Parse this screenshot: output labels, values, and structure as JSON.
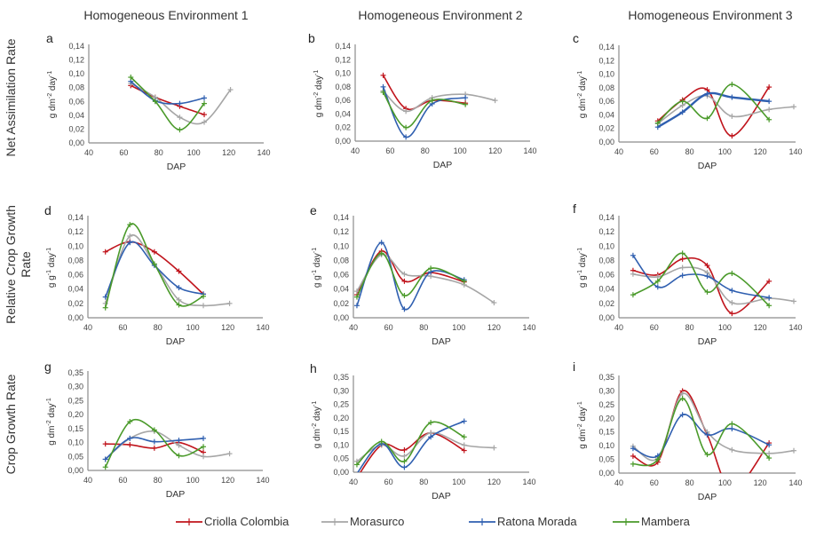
{
  "column_titles": [
    "Homogeneous Environment 1",
    "Homogeneous Environment 2",
    "Homogeneous Environment 3"
  ],
  "row_titles": [
    [
      "Net Assimilation Rate"
    ],
    [
      "Relative Crop Growth",
      "Rate"
    ],
    [
      "Crop Growth Rate"
    ]
  ],
  "legend": [
    {
      "name": "Criolla Colombia",
      "color": "#c0141c"
    },
    {
      "name": "Morasurco",
      "color": "#a6a6a6"
    },
    {
      "name": "Ratona Morada",
      "color": "#2f5fb0"
    },
    {
      "name": "Mambera",
      "color": "#4a9a2a"
    }
  ],
  "chart_data": [
    {
      "panel": "a",
      "type": "line",
      "title": "",
      "xlabel": "DAP",
      "ylabel": "g dm-2 day-1",
      "xlim": [
        40,
        140
      ],
      "xticks": [
        "40",
        "60",
        "80",
        "100",
        "120",
        "140"
      ],
      "ylim": [
        0,
        0.14
      ],
      "yticks": [
        "0,00",
        "0,02",
        "0,04",
        "0,06",
        "0,08",
        "0,10",
        "0,12",
        "0,14"
      ],
      "series": [
        {
          "name": "Criolla Colombia",
          "x": [
            64,
            78,
            92,
            106
          ],
          "y": [
            0.083,
            0.066,
            0.053,
            0.041
          ]
        },
        {
          "name": "Morasurco",
          "x": [
            64,
            78,
            92,
            106,
            121
          ],
          "y": [
            0.086,
            0.066,
            0.037,
            0.03,
            0.077
          ]
        },
        {
          "name": "Ratona Morada",
          "x": [
            64,
            78,
            92,
            106
          ],
          "y": [
            0.089,
            0.061,
            0.057,
            0.065
          ]
        },
        {
          "name": "Mambera",
          "x": [
            64,
            78,
            92,
            106
          ],
          "y": [
            0.095,
            0.06,
            0.019,
            0.057
          ]
        }
      ]
    },
    {
      "panel": "b",
      "type": "line",
      "title": "",
      "xlabel": "DAP",
      "ylabel": "g dm-2 day-1",
      "xlim": [
        40,
        140
      ],
      "xticks": [
        "40",
        "60",
        "80",
        "100",
        "120",
        "140"
      ],
      "ylim": [
        0,
        0.14
      ],
      "yticks": [
        "0,00",
        "0,02",
        "0,04",
        "0,06",
        "0,08",
        "0,10",
        "0,12",
        "0,14"
      ],
      "series": [
        {
          "name": "Criolla Colombia",
          "x": [
            56,
            69,
            84,
            103
          ],
          "y": [
            0.097,
            0.048,
            0.06,
            0.056
          ]
        },
        {
          "name": "Morasurco",
          "x": [
            56,
            69,
            84,
            103,
            120
          ],
          "y": [
            0.074,
            0.044,
            0.064,
            0.069,
            0.06
          ]
        },
        {
          "name": "Ratona Morada",
          "x": [
            56,
            69,
            84,
            103
          ],
          "y": [
            0.08,
            0.006,
            0.055,
            0.064
          ]
        },
        {
          "name": "Mambera",
          "x": [
            56,
            69,
            84,
            103
          ],
          "y": [
            0.072,
            0.02,
            0.06,
            0.054
          ]
        }
      ]
    },
    {
      "panel": "c",
      "type": "line",
      "title": "",
      "xlabel": "DAP",
      "ylabel": "g dm-2 day-1",
      "xlim": [
        40,
        140
      ],
      "xticks": [
        "40",
        "60",
        "80",
        "100",
        "120",
        "140"
      ],
      "ylim": [
        0,
        0.14
      ],
      "yticks": [
        "0,00",
        "0,02",
        "0,04",
        "0,06",
        "0,08",
        "0,10",
        "0,12",
        "0,14"
      ],
      "series": [
        {
          "name": "Criolla Colombia",
          "x": [
            62,
            76,
            90,
            104,
            125
          ],
          "y": [
            0.031,
            0.062,
            0.077,
            0.009,
            0.081
          ]
        },
        {
          "name": "Morasurco",
          "x": [
            62,
            76,
            90,
            104,
            125,
            139
          ],
          "y": [
            0.027,
            0.054,
            0.068,
            0.038,
            0.048,
            0.052
          ]
        },
        {
          "name": "Ratona Morada",
          "x": [
            62,
            76,
            90,
            104,
            125
          ],
          "y": [
            0.022,
            0.044,
            0.071,
            0.066,
            0.06
          ]
        },
        {
          "name": "Mambera",
          "x": [
            62,
            76,
            90,
            104,
            125
          ],
          "y": [
            0.028,
            0.06,
            0.035,
            0.085,
            0.033
          ]
        }
      ]
    },
    {
      "panel": "d",
      "type": "line",
      "title": "",
      "xlabel": "DAP",
      "ylabel": "g g-1 day-1",
      "xlim": [
        40,
        140
      ],
      "xticks": [
        "40",
        "60",
        "80",
        "100",
        "120",
        "140"
      ],
      "ylim": [
        0,
        0.14
      ],
      "yticks": [
        "0,00",
        "0,02",
        "0,04",
        "0,06",
        "0,08",
        "0,10",
        "0,12",
        "0,14"
      ],
      "series": [
        {
          "name": "Criolla Colombia",
          "x": [
            50,
            64,
            78,
            92,
            106
          ],
          "y": [
            0.092,
            0.106,
            0.092,
            0.065,
            0.033
          ]
        },
        {
          "name": "Morasurco",
          "x": [
            50,
            64,
            78,
            92,
            106,
            121
          ],
          "y": [
            0.02,
            0.114,
            0.075,
            0.025,
            0.017,
            0.02
          ]
        },
        {
          "name": "Ratona Morada",
          "x": [
            50,
            64,
            78,
            92,
            106
          ],
          "y": [
            0.029,
            0.105,
            0.073,
            0.042,
            0.033
          ]
        },
        {
          "name": "Mambera",
          "x": [
            50,
            64,
            78,
            92,
            106
          ],
          "y": [
            0.014,
            0.13,
            0.075,
            0.018,
            0.03
          ]
        }
      ]
    },
    {
      "panel": "e",
      "type": "line",
      "title": "",
      "xlabel": "DAP",
      "ylabel": "g g-1 day-1",
      "xlim": [
        40,
        140
      ],
      "xticks": [
        "40",
        "60",
        "80",
        "100",
        "120",
        "140"
      ],
      "ylim": [
        0,
        0.14
      ],
      "yticks": [
        "0,00",
        "0,02",
        "0,04",
        "0,06",
        "0,08",
        "0,10",
        "0,12",
        "0,14"
      ],
      "series": [
        {
          "name": "Criolla Colombia",
          "x": [
            42,
            56,
            69,
            84,
            103
          ],
          "y": [
            0.032,
            0.093,
            0.051,
            0.063,
            0.05
          ]
        },
        {
          "name": "Morasurco",
          "x": [
            42,
            56,
            69,
            84,
            103,
            120
          ],
          "y": [
            0.037,
            0.088,
            0.061,
            0.058,
            0.046,
            0.021
          ]
        },
        {
          "name": "Ratona Morada",
          "x": [
            42,
            56,
            69,
            84,
            103
          ],
          "y": [
            0.017,
            0.105,
            0.012,
            0.064,
            0.053
          ]
        },
        {
          "name": "Mambera",
          "x": [
            42,
            56,
            69,
            84,
            103
          ],
          "y": [
            0.029,
            0.09,
            0.031,
            0.069,
            0.051
          ]
        }
      ]
    },
    {
      "panel": "f",
      "type": "line",
      "title": "",
      "xlabel": "DAP",
      "ylabel": "g g-1 day-1",
      "xlim": [
        40,
        140
      ],
      "xticks": [
        "40",
        "60",
        "80",
        "100",
        "120",
        "140"
      ],
      "ylim": [
        0,
        0.14
      ],
      "yticks": [
        "0,00",
        "0,02",
        "0,04",
        "0,06",
        "0,08",
        "0,10",
        "0,12",
        "0,14"
      ],
      "series": [
        {
          "name": "Criolla Colombia",
          "x": [
            48,
            62,
            76,
            90,
            104,
            125
          ],
          "y": [
            0.066,
            0.06,
            0.082,
            0.073,
            0.006,
            0.051
          ]
        },
        {
          "name": "Morasurco",
          "x": [
            48,
            62,
            76,
            90,
            104,
            125,
            139
          ],
          "y": [
            0.061,
            0.057,
            0.07,
            0.063,
            0.021,
            0.027,
            0.023
          ]
        },
        {
          "name": "Ratona Morada",
          "x": [
            48,
            62,
            76,
            90,
            104,
            125
          ],
          "y": [
            0.087,
            0.043,
            0.059,
            0.058,
            0.038,
            0.028
          ]
        },
        {
          "name": "Mambera",
          "x": [
            48,
            62,
            76,
            90,
            104,
            125
          ],
          "y": [
            0.032,
            0.051,
            0.09,
            0.036,
            0.062,
            0.017
          ]
        }
      ]
    },
    {
      "panel": "g",
      "type": "line",
      "title": "",
      "xlabel": "DAP",
      "ylabel": "g dm-2 day-1",
      "xlim": [
        40,
        140
      ],
      "xticks": [
        "40",
        "60",
        "80",
        "100",
        "120",
        "140"
      ],
      "ylim": [
        0,
        0.35
      ],
      "yticks": [
        "0,00",
        "0,05",
        "0,10",
        "0,15",
        "0,20",
        "0,25",
        "0,30",
        "0,35"
      ],
      "series": [
        {
          "name": "Criolla Colombia",
          "x": [
            50,
            64,
            78,
            92,
            106
          ],
          "y": [
            0.095,
            0.092,
            0.08,
            0.1,
            0.065
          ]
        },
        {
          "name": "Morasurco",
          "x": [
            50,
            64,
            78,
            92,
            106,
            121
          ],
          "y": [
            0.04,
            0.115,
            0.14,
            0.09,
            0.05,
            0.06
          ]
        },
        {
          "name": "Ratona Morada",
          "x": [
            50,
            64,
            78,
            92,
            106
          ],
          "y": [
            0.04,
            0.115,
            0.103,
            0.108,
            0.115
          ]
        },
        {
          "name": "Mambera",
          "x": [
            50,
            64,
            78,
            92,
            106
          ],
          "y": [
            0.012,
            0.175,
            0.145,
            0.053,
            0.085
          ]
        }
      ]
    },
    {
      "panel": "h",
      "type": "line",
      "title": "",
      "xlabel": "DAP",
      "ylabel": "g dm-2 day-1",
      "xlim": [
        40,
        140
      ],
      "xticks": [
        "40",
        "60",
        "80",
        "100",
        "120",
        "140"
      ],
      "ylim": [
        0,
        0.35
      ],
      "yticks": [
        "0,00",
        "0,05",
        "0,10",
        "0,15",
        "0,20",
        "0,25",
        "0,30",
        "0,35"
      ],
      "series": [
        {
          "name": "Criolla Colombia",
          "x": [
            42,
            56,
            69,
            84,
            103
          ],
          "y": [
            -0.02,
            0.1,
            0.082,
            0.145,
            0.08
          ]
        },
        {
          "name": "Morasurco",
          "x": [
            42,
            56,
            69,
            84,
            103,
            120
          ],
          "y": [
            0.04,
            0.1,
            0.06,
            0.145,
            0.1,
            0.09
          ]
        },
        {
          "name": "Ratona Morada",
          "x": [
            42,
            56,
            69,
            84,
            103
          ],
          "y": [
            -0.005,
            0.105,
            0.018,
            0.13,
            0.188
          ]
        },
        {
          "name": "Mambera",
          "x": [
            42,
            56,
            69,
            84,
            103
          ],
          "y": [
            0.028,
            0.113,
            0.04,
            0.183,
            0.13
          ]
        }
      ]
    },
    {
      "panel": "i",
      "type": "line",
      "title": "",
      "xlabel": "DAP",
      "ylabel": "g dm-2 day-1",
      "xlim": [
        40,
        140
      ],
      "xticks": [
        "40",
        "60",
        "80",
        "100",
        "120",
        "140"
      ],
      "ylim": [
        0,
        0.35
      ],
      "yticks": [
        "0,00",
        "0,05",
        "0,10",
        "0,15",
        "0,20",
        "0,25",
        "0,30",
        "0,35"
      ],
      "series": [
        {
          "name": "Criolla Colombia",
          "x": [
            48,
            62,
            76,
            90,
            104,
            125
          ],
          "y": [
            0.062,
            0.04,
            0.3,
            0.14,
            -0.06,
            0.11
          ]
        },
        {
          "name": "Morasurco",
          "x": [
            48,
            62,
            76,
            90,
            104,
            125,
            139
          ],
          "y": [
            0.098,
            0.055,
            0.29,
            0.15,
            0.085,
            0.072,
            0.082
          ]
        },
        {
          "name": "Ratona Morada",
          "x": [
            48,
            62,
            76,
            90,
            104,
            125
          ],
          "y": [
            0.09,
            0.063,
            0.213,
            0.14,
            0.162,
            0.103
          ]
        },
        {
          "name": "Mambera",
          "x": [
            48,
            62,
            76,
            90,
            104,
            125
          ],
          "y": [
            0.033,
            0.05,
            0.272,
            0.068,
            0.18,
            0.055
          ]
        }
      ]
    }
  ]
}
